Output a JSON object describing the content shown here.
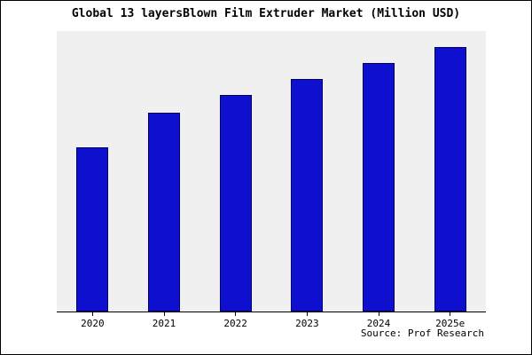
{
  "title": "Global 13 layersBlown Film Extruder Market (Million USD)",
  "source": "Source: Prof Research",
  "colors": {
    "bar_fill": "#0f0fd0",
    "bar_border": "#000060",
    "plot_bg": "#f0f0f0"
  },
  "chart_data": {
    "type": "bar",
    "title": "Global 13 layersBlown Film Extruder Market (Million USD)",
    "categories": [
      "2020",
      "2021",
      "2022",
      "2023",
      "2024",
      "2025e"
    ],
    "values": [
      62,
      75,
      82,
      88,
      94,
      100
    ],
    "xlabel": "",
    "ylabel": "",
    "ylim": [
      0,
      105
    ],
    "grid": false,
    "legend": false,
    "y_axis_labels_shown": false,
    "note": "No y-axis tick values are shown in the chart; bar values are relative estimates normalized so that 2025e = 100"
  }
}
